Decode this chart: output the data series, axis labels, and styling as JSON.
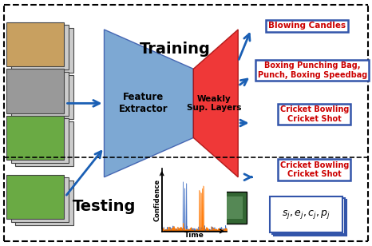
{
  "fig_width": 4.66,
  "fig_height": 3.08,
  "dpi": 100,
  "bg_color": "#ffffff",
  "training_label": "Training",
  "testing_label": "Testing",
  "feature_extractor_label": "Feature\nExtractor",
  "weakly_sup_label": "Weakly\nSup. Layers",
  "blowing_candles_label": "Blowing Candles",
  "boxing_label": "Boxing Punching Bag,\nPunch, Boxing Speedbag",
  "cricket_train_label": "Cricket Bowling\nCricket Shot",
  "cricket_test_label": "Cricket Bowling\nCricket Shot",
  "sj_label": "$s_j, e_j, c_j, p_j$",
  "confidence_label": "Confidence",
  "time_label": "Time",
  "blue_arrow_color": "#1A5FB4",
  "label_box_blue": "#3355AA",
  "trapezoid_blue": "#6699CC",
  "trapezoid_red": "#EE2222",
  "text_red": "#CC0000",
  "img_colors": [
    "#c8a060",
    "#aaaaaa",
    "#6aaa44",
    "#6aaa44"
  ],
  "img_back_color": "#cccccc"
}
